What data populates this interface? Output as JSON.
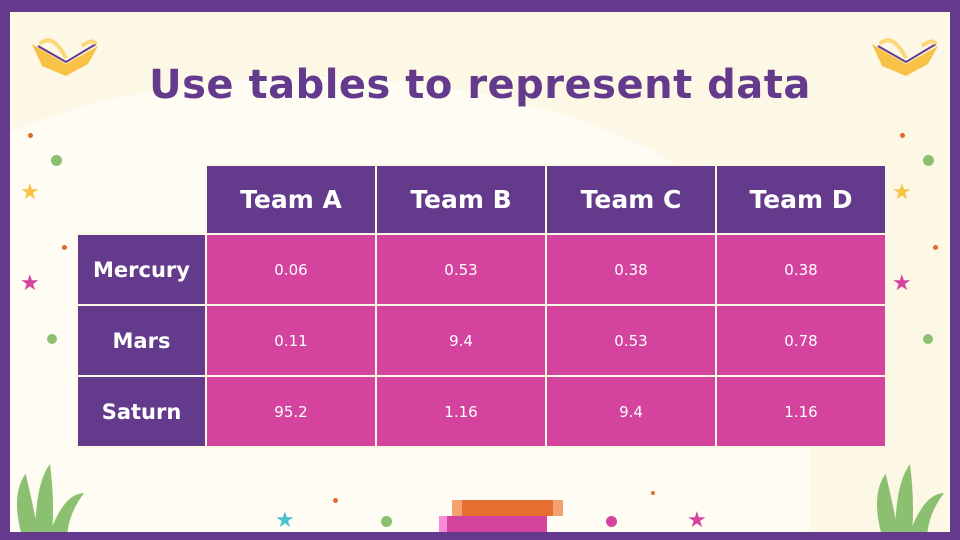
{
  "title": "Use tables to represent data",
  "table": {
    "columns": [
      "Team A",
      "Team B",
      "Team C",
      "Team D"
    ],
    "rows": [
      {
        "label": "Mercury",
        "values": [
          "0.06",
          "0.53",
          "0.38",
          "0.38"
        ]
      },
      {
        "label": "Mars",
        "values": [
          "0.11",
          "9.4",
          "0.53",
          "0.78"
        ]
      },
      {
        "label": "Saturn",
        "values": [
          "95.2",
          "1.16",
          "9.4",
          "1.16"
        ]
      }
    ]
  },
  "colors": {
    "frame": "#643a8c",
    "header": "#643a8c",
    "cell": "#d4449f",
    "background": "#fdf7e6"
  }
}
